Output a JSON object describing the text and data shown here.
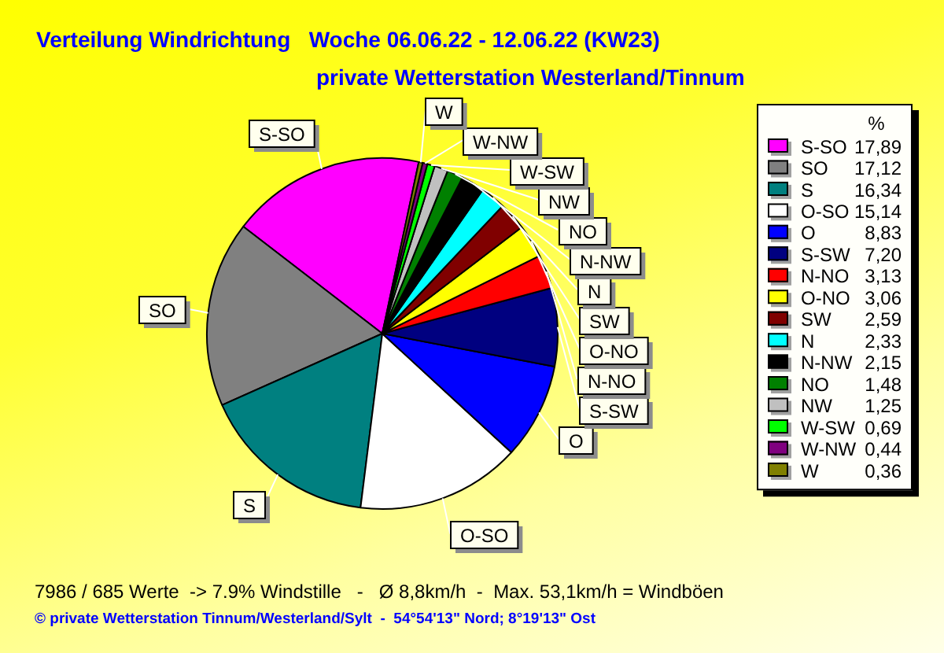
{
  "chart_data": {
    "type": "pie",
    "title": "Verteilung Windrichtung   Woche 06.06.22 - 12.06.22 (KW23)",
    "subtitle": "private Wetterstation Westerland/Tinnum",
    "categories": [
      "S-SO",
      "SO",
      "S",
      "O-SO",
      "O",
      "S-SW",
      "N-NO",
      "O-NO",
      "SW",
      "N",
      "N-NW",
      "NO",
      "NW",
      "W-SW",
      "W-NW",
      "W"
    ],
    "values": [
      17.89,
      17.12,
      16.34,
      15.14,
      8.83,
      7.2,
      3.13,
      3.06,
      2.59,
      2.33,
      2.15,
      1.48,
      1.25,
      0.69,
      0.44,
      0.36
    ],
    "value_labels": [
      "17,89",
      "17,12",
      "16,34",
      "15,14",
      "8,83",
      "7,20",
      "3,13",
      "3,06",
      "2,59",
      "2,33",
      "2,15",
      "1,48",
      "1,25",
      "0,69",
      "0,44",
      "0,36"
    ],
    "colors": [
      "#ff00ff",
      "#808080",
      "#008080",
      "#ffffff",
      "#0000ff",
      "#000080",
      "#ff0000",
      "#ffff00",
      "#800000",
      "#00ffff",
      "#000000",
      "#008000",
      "#c0c0c0",
      "#00ff00",
      "#800080",
      "#808000"
    ],
    "legend": "right",
    "legend_title": "%",
    "annotations": [
      "7986 / 685 Werte  -> 7.9% Windstille   -   Ø 8,8km/h  -  Max. 53,1km/h = Windböen",
      "© private Wetterstation Tinnum/Westerland/Sylt  -  54°54'13\" Nord; 8°19'13\" Ost"
    ]
  }
}
